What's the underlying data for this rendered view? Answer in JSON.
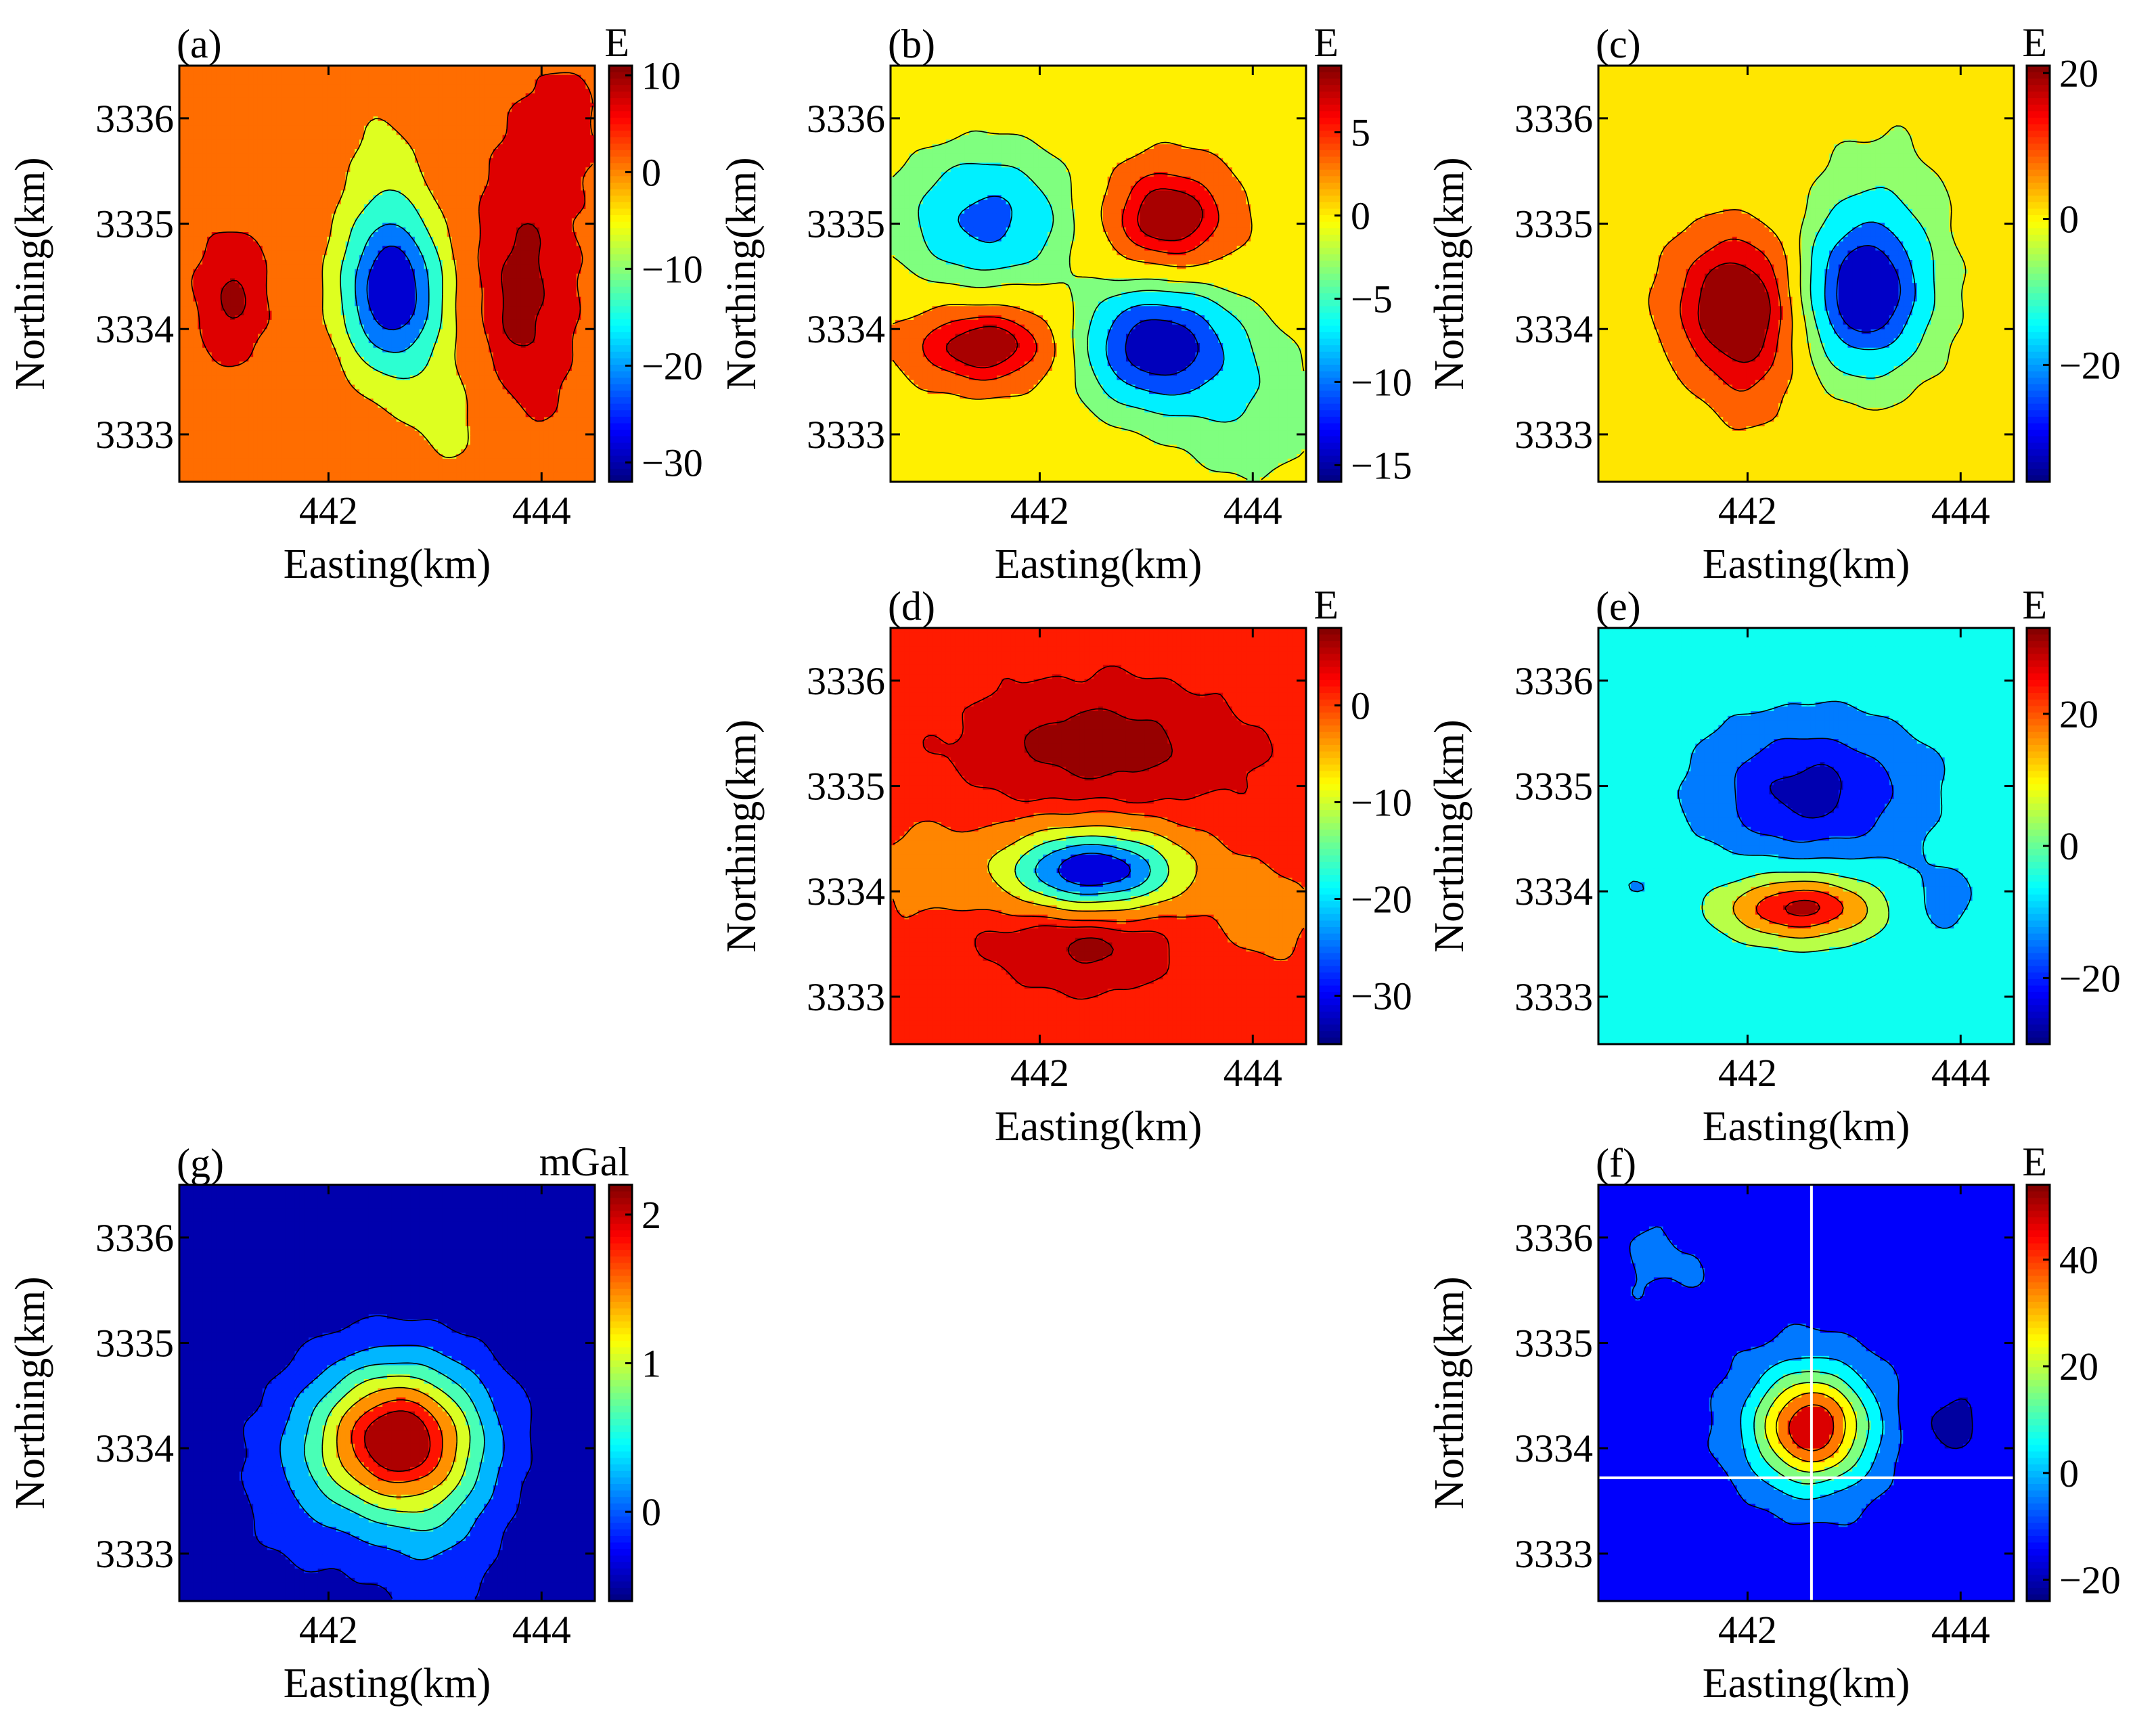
{
  "figure": {
    "colormap": [
      "#00007f",
      "#0000ff",
      "#007fff",
      "#00ffff",
      "#7fff7f",
      "#ffff00",
      "#ff7f00",
      "#ff0000",
      "#7f0000"
    ],
    "x_tick_labels": [
      "442",
      "444"
    ],
    "y_tick_labels": [
      "3333",
      "3334",
      "3335",
      "3336"
    ]
  },
  "chart_data": [
    {
      "id": "a",
      "type": "contour",
      "label": "(a)",
      "unit": "E",
      "xlabel": "Easting(km)",
      "ylabel": "Northing(km)",
      "xlim": [
        440.6,
        444.5
      ],
      "ylim": [
        3332.55,
        3336.5
      ],
      "xticks": [
        442,
        444
      ],
      "yticks": [
        3333,
        3334,
        3335,
        3336
      ],
      "clim": [
        -32,
        11
      ],
      "cbar_ticks": [
        10,
        0,
        -10,
        -20,
        -30
      ],
      "background": 2.5,
      "levels": [
        -25,
        -18,
        -10,
        -3,
        5,
        9
      ],
      "features": [
        {
          "x": 442.6,
          "y": 3334.35,
          "amp": -34,
          "sx": 0.34,
          "sy": 0.55
        },
        {
          "x": 443.8,
          "y": 3334.3,
          "amp": 8,
          "sx": 0.35,
          "sy": 0.9
        },
        {
          "x": 444.2,
          "y": 3335.9,
          "amp": 4,
          "sx": 0.3,
          "sy": 0.5
        },
        {
          "x": 441.1,
          "y": 3334.3,
          "amp": 7,
          "sx": 0.25,
          "sy": 0.45
        },
        {
          "x": 442.5,
          "y": 3335.6,
          "amp": -6,
          "sx": 0.3,
          "sy": 0.6
        },
        {
          "x": 443.2,
          "y": 3333.1,
          "amp": -7,
          "sx": 0.35,
          "sy": 0.5
        }
      ]
    },
    {
      "id": "b",
      "type": "contour",
      "label": "(b)",
      "unit": "E",
      "xlabel": "Easting(km)",
      "ylabel": "Northing(km)",
      "xlim": [
        440.6,
        444.5
      ],
      "ylim": [
        3332.55,
        3336.5
      ],
      "xticks": [
        442,
        444
      ],
      "yticks": [
        3333,
        3334,
        3335,
        3336
      ],
      "clim": [
        -16,
        9
      ],
      "cbar_ticks": [
        5,
        0,
        -5,
        -10,
        -15
      ],
      "background": 0,
      "levels": [
        -13,
        -9,
        -5,
        -2,
        2,
        5,
        7
      ],
      "features": [
        {
          "x": 441.5,
          "y": 3335.05,
          "amp": -10,
          "sx": 0.55,
          "sy": 0.45
        },
        {
          "x": 443.2,
          "y": 3335.05,
          "amp": 9,
          "sx": 0.45,
          "sy": 0.4
        },
        {
          "x": 441.5,
          "y": 3333.85,
          "amp": 9,
          "sx": 0.55,
          "sy": 0.3
        },
        {
          "x": 443.1,
          "y": 3333.85,
          "amp": -16,
          "sx": 0.5,
          "sy": 0.4
        },
        {
          "x": 444.0,
          "y": 3333.2,
          "amp": -4,
          "sx": 0.5,
          "sy": 0.5
        }
      ]
    },
    {
      "id": "c",
      "type": "contour",
      "label": "(c)",
      "unit": "E",
      "xlabel": "Easting(km)",
      "ylabel": "Northing(km)",
      "xlim": [
        440.6,
        444.5
      ],
      "ylim": [
        3332.55,
        3336.5
      ],
      "xticks": [
        442,
        444
      ],
      "yticks": [
        3333,
        3334,
        3335,
        3336
      ],
      "clim": [
        -36,
        21
      ],
      "cbar_ticks": [
        20,
        0,
        -20
      ],
      "background": 0,
      "levels": [
        -28,
        -20,
        -10,
        -3,
        5,
        12,
        18
      ],
      "features": [
        {
          "x": 441.9,
          "y": 3334.25,
          "amp": 24,
          "sx": 0.45,
          "sy": 0.5
        },
        {
          "x": 443.1,
          "y": 3334.35,
          "amp": -38,
          "sx": 0.4,
          "sy": 0.5
        },
        {
          "x": 442.0,
          "y": 3333.5,
          "amp": 6,
          "sx": 0.3,
          "sy": 0.5
        },
        {
          "x": 443.3,
          "y": 3335.3,
          "amp": -5,
          "sx": 0.4,
          "sy": 0.5
        }
      ]
    },
    {
      "id": "d",
      "type": "contour",
      "label": "(d)",
      "unit": "E",
      "xlabel": "Easting(km)",
      "ylabel": "Northing(km)",
      "xlim": [
        440.6,
        444.5
      ],
      "ylim": [
        3332.55,
        3336.5
      ],
      "xticks": [
        442,
        444
      ],
      "yticks": [
        3333,
        3334,
        3335,
        3336
      ],
      "clim": [
        -35,
        8
      ],
      "cbar_ticks": [
        0,
        -10,
        -20,
        -30
      ],
      "background": 1.5,
      "levels": [
        -27,
        -20,
        -13,
        -6,
        0,
        3,
        6
      ],
      "features": [
        {
          "x": 442.5,
          "y": 3334.2,
          "amp": -35,
          "sx": 0.55,
          "sy": 0.25
        },
        {
          "x": 442.6,
          "y": 3335.4,
          "amp": 6,
          "sx": 0.9,
          "sy": 0.4
        },
        {
          "x": 442.4,
          "y": 3333.5,
          "amp": 5.5,
          "sx": 0.6,
          "sy": 0.3
        },
        {
          "x": 440.9,
          "y": 3334.2,
          "amp": -4,
          "sx": 0.3,
          "sy": 0.3
        },
        {
          "x": 444.1,
          "y": 3333.8,
          "amp": -4,
          "sx": 0.3,
          "sy": 0.3
        }
      ]
    },
    {
      "id": "e",
      "type": "contour",
      "label": "(e)",
      "unit": "E",
      "xlabel": "Easting(km)",
      "ylabel": "Northing(km)",
      "xlim": [
        440.6,
        444.5
      ],
      "ylim": [
        3332.55,
        3336.5
      ],
      "xticks": [
        442,
        444
      ],
      "yticks": [
        3333,
        3334,
        3335,
        3336
      ],
      "clim": [
        -30,
        33
      ],
      "cbar_ticks": [
        20,
        0,
        -20
      ],
      "background": -6,
      "levels": [
        -24,
        -18,
        -11,
        0,
        10,
        20,
        28
      ],
      "features": [
        {
          "x": 442.6,
          "y": 3334.95,
          "amp": -20,
          "sx": 0.75,
          "sy": 0.5
        },
        {
          "x": 442.5,
          "y": 3333.85,
          "amp": 38,
          "sx": 0.5,
          "sy": 0.22
        },
        {
          "x": 443.8,
          "y": 3333.9,
          "amp": -8,
          "sx": 0.3,
          "sy": 0.25
        },
        {
          "x": 441.0,
          "y": 3334.0,
          "amp": -5,
          "sx": 0.25,
          "sy": 0.2
        }
      ]
    },
    {
      "id": "f",
      "type": "contour",
      "label": "(f)",
      "unit": "E",
      "xlabel": "Easting(km)",
      "ylabel": "Northing(km)",
      "xlim": [
        440.6,
        444.5
      ],
      "ylim": [
        3332.55,
        3336.5
      ],
      "xticks": [
        442,
        444
      ],
      "yticks": [
        3333,
        3334,
        3335,
        3336
      ],
      "clim": [
        -24,
        54
      ],
      "cbar_ticks": [
        40,
        20,
        0,
        -20
      ],
      "background": -13,
      "levels": [
        -19,
        -10,
        0,
        10,
        20,
        30,
        40
      ],
      "features": [
        {
          "x": 442.6,
          "y": 3334.2,
          "amp": 62,
          "sx": 0.38,
          "sy": 0.38
        },
        {
          "x": 443.9,
          "y": 3334.25,
          "amp": -8,
          "sx": 0.3,
          "sy": 0.3
        },
        {
          "x": 441.2,
          "y": 3335.8,
          "amp": 4,
          "sx": 0.4,
          "sy": 0.4
        }
      ],
      "crosshair": {
        "x": 442.6,
        "y": 3333.72
      }
    },
    {
      "id": "g",
      "type": "contour",
      "label": "(g)",
      "unit": "mGal",
      "xlabel": "Easting(km)",
      "ylabel": "Northing(km)",
      "xlim": [
        440.6,
        444.5
      ],
      "ylim": [
        3332.55,
        3336.5
      ],
      "xticks": [
        442,
        444
      ],
      "yticks": [
        3333,
        3334,
        3335,
        3336
      ],
      "clim": [
        -0.6,
        2.2
      ],
      "cbar_ticks": [
        2,
        1,
        0
      ],
      "background": -0.55,
      "levels": [
        -0.35,
        0.05,
        0.45,
        0.85,
        1.25,
        1.65,
        1.95
      ],
      "features": [
        {
          "x": 442.65,
          "y": 3334.1,
          "amp": 2.75,
          "sx": 0.55,
          "sy": 0.5
        },
        {
          "x": 443.0,
          "y": 3333.2,
          "amp": 0.45,
          "sx": 0.4,
          "sy": 0.6
        },
        {
          "x": 441.8,
          "y": 3333.6,
          "amp": 0.3,
          "sx": 0.5,
          "sy": 0.6
        }
      ]
    }
  ]
}
